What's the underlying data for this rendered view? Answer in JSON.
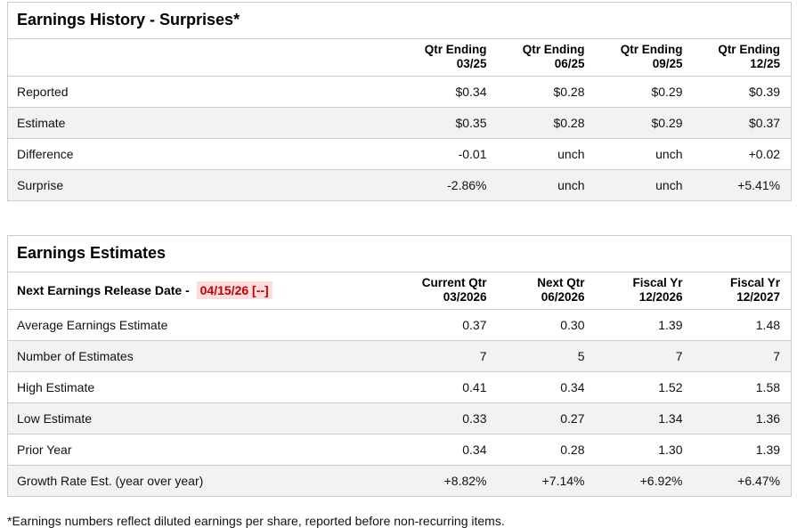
{
  "palette": {
    "negative": "#c40000",
    "positive": "#0c7d54",
    "date_highlight_bg": "#fcdcdc",
    "stripe_bg": "#f2f2f2",
    "border": "#cccccc"
  },
  "history_table": {
    "title": "Earnings History - Surprises*",
    "columns": [
      {
        "line1": "Qtr Ending",
        "line2": "03/25"
      },
      {
        "line1": "Qtr Ending",
        "line2": "06/25"
      },
      {
        "line1": "Qtr Ending",
        "line2": "09/25"
      },
      {
        "line1": "Qtr Ending",
        "line2": "12/25"
      }
    ],
    "rows": [
      {
        "label": "Reported",
        "values": [
          "$0.34",
          "$0.28",
          "$0.29",
          "$0.39"
        ]
      },
      {
        "label": "Estimate",
        "values": [
          "$0.35",
          "$0.28",
          "$0.29",
          "$0.37"
        ]
      },
      {
        "label": "Difference",
        "values": [
          "-0.01",
          "unch",
          "unch",
          "+0.02"
        ]
      },
      {
        "label": "Surprise",
        "values": [
          "-2.86%",
          "unch",
          "unch",
          "+5.41%"
        ]
      }
    ]
  },
  "estimates_table": {
    "title": "Earnings Estimates",
    "release_date_label": "Next Earnings Release Date -",
    "release_date": "04/15/26 [--]",
    "columns": [
      {
        "line1": "Current Qtr",
        "line2": "03/2026"
      },
      {
        "line1": "Next Qtr",
        "line2": "06/2026"
      },
      {
        "line1": "Fiscal Yr",
        "line2": "12/2026"
      },
      {
        "line1": "Fiscal Yr",
        "line2": "12/2027"
      }
    ],
    "rows": [
      {
        "label": "Average Earnings Estimate",
        "values": [
          "0.37",
          "0.30",
          "1.39",
          "1.48"
        ]
      },
      {
        "label": "Number of Estimates",
        "values": [
          "7",
          "5",
          "7",
          "7"
        ]
      },
      {
        "label": "High Estimate",
        "values": [
          "0.41",
          "0.34",
          "1.52",
          "1.58"
        ]
      },
      {
        "label": "Low Estimate",
        "values": [
          "0.33",
          "0.27",
          "1.34",
          "1.36"
        ]
      },
      {
        "label": "Prior Year",
        "values": [
          "0.34",
          "0.28",
          "1.30",
          "1.39"
        ]
      },
      {
        "label": "Growth Rate Est. (year over year)",
        "values": [
          "+8.82%",
          "+7.14%",
          "+6.92%",
          "+6.47%"
        ]
      }
    ]
  },
  "footnote": "*Earnings numbers reflect diluted earnings per share, reported before non-recurring items."
}
